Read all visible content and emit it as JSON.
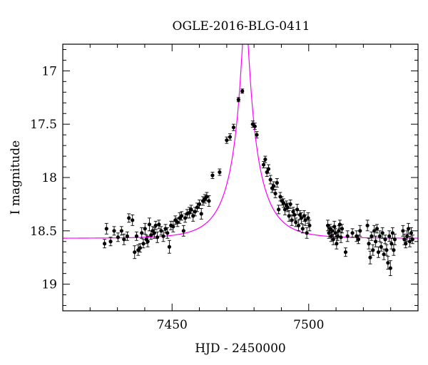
{
  "chart_data": {
    "type": "scatter",
    "title": "OGLE-2016-BLG-0411",
    "xlabel": "HJD - 2450000",
    "ylabel": "I magnitude",
    "xlim": [
      7410,
      7540
    ],
    "ylim": [
      19.25,
      16.75
    ],
    "y_inverted": true,
    "x_ticks": [
      {
        "value": 7450,
        "label": "7450"
      },
      {
        "value": 7500,
        "label": "7500"
      }
    ],
    "y_ticks": [
      {
        "value": 17,
        "label": "17"
      },
      {
        "value": 17.5,
        "label": "17.5"
      },
      {
        "value": 18,
        "label": "18"
      },
      {
        "value": 18.5,
        "label": "18.5"
      },
      {
        "value": 19,
        "label": "19"
      }
    ],
    "model": {
      "color": "#ff00ff",
      "t0": 7476.8,
      "u0": 0.1,
      "tE": 11.5,
      "baseline_mag": 18.57,
      "blend_fraction": 0.67
    },
    "points_color": "#000000",
    "series": [
      {
        "values": [
          [
            7425.3,
            18.62,
            0.04
          ],
          [
            7426.0,
            18.48,
            0.05
          ],
          [
            7427.5,
            18.6,
            0.04
          ],
          [
            7428.8,
            18.5,
            0.04
          ],
          [
            7430.2,
            18.56,
            0.04
          ],
          [
            7431.5,
            18.5,
            0.04
          ],
          [
            7432.4,
            18.58,
            0.05
          ],
          [
            7433.6,
            18.55,
            0.04
          ],
          [
            7434.2,
            18.38,
            0.04
          ],
          [
            7435.5,
            18.4,
            0.05
          ],
          [
            7436.3,
            18.7,
            0.06
          ],
          [
            7437.0,
            18.55,
            0.04
          ],
          [
            7437.6,
            18.68,
            0.05
          ],
          [
            7438.3,
            18.66,
            0.04
          ],
          [
            7438.9,
            18.52,
            0.05
          ],
          [
            7439.5,
            18.62,
            0.04
          ],
          [
            7440.1,
            18.48,
            0.05
          ],
          [
            7440.6,
            18.58,
            0.04
          ],
          [
            7441.1,
            18.6,
            0.05
          ],
          [
            7441.7,
            18.44,
            0.06
          ],
          [
            7442.3,
            18.54,
            0.04
          ],
          [
            7442.9,
            18.5,
            0.04
          ],
          [
            7443.5,
            18.52,
            0.05
          ],
          [
            7444.0,
            18.45,
            0.04
          ],
          [
            7444.6,
            18.56,
            0.05
          ],
          [
            7445.2,
            18.44,
            0.04
          ],
          [
            7446.0,
            18.5,
            0.04
          ],
          [
            7446.8,
            18.55,
            0.05
          ],
          [
            7447.6,
            18.48,
            0.04
          ],
          [
            7448.3,
            18.52,
            0.05
          ],
          [
            7449.0,
            18.65,
            0.06
          ],
          [
            7449.6,
            18.45,
            0.04
          ],
          [
            7450.4,
            18.46,
            0.05
          ],
          [
            7451.2,
            18.4,
            0.04
          ],
          [
            7452.0,
            18.42,
            0.04
          ],
          [
            7452.8,
            18.38,
            0.05
          ],
          [
            7453.5,
            18.36,
            0.04
          ],
          [
            7454.2,
            18.5,
            0.05
          ],
          [
            7454.8,
            18.38,
            0.04
          ],
          [
            7455.5,
            18.34,
            0.04
          ],
          [
            7456.3,
            18.33,
            0.05
          ],
          [
            7457.0,
            18.3,
            0.04
          ],
          [
            7457.7,
            18.36,
            0.05
          ],
          [
            7458.4,
            18.32,
            0.04
          ],
          [
            7459.2,
            18.28,
            0.04
          ],
          [
            7460.0,
            18.25,
            0.04
          ],
          [
            7460.7,
            18.34,
            0.05
          ],
          [
            7461.3,
            18.22,
            0.04
          ],
          [
            7462.0,
            18.2,
            0.04
          ],
          [
            7462.7,
            18.18,
            0.04
          ],
          [
            7463.5,
            18.22,
            0.05
          ],
          [
            7464.8,
            17.98,
            0.03
          ],
          [
            7467.4,
            17.95,
            0.03
          ],
          [
            7470.0,
            17.65,
            0.03
          ],
          [
            7471.2,
            17.62,
            0.03
          ],
          [
            7472.5,
            17.53,
            0.03
          ],
          [
            7474.3,
            17.27,
            0.02
          ],
          [
            7475.7,
            17.19,
            0.02
          ],
          [
            7479.5,
            17.5,
            0.03
          ],
          [
            7480.3,
            17.52,
            0.03
          ],
          [
            7481.0,
            17.6,
            0.03
          ],
          [
            7483.5,
            17.88,
            0.03
          ],
          [
            7484.1,
            17.83,
            0.03
          ],
          [
            7484.7,
            17.95,
            0.04
          ],
          [
            7485.3,
            17.92,
            0.04
          ],
          [
            7486.0,
            18.02,
            0.04
          ],
          [
            7486.6,
            18.1,
            0.04
          ],
          [
            7487.2,
            18.08,
            0.04
          ],
          [
            7487.8,
            18.15,
            0.04
          ],
          [
            7488.4,
            18.05,
            0.04
          ],
          [
            7489.0,
            18.3,
            0.04
          ],
          [
            7489.6,
            18.18,
            0.04
          ],
          [
            7490.2,
            18.22,
            0.04
          ],
          [
            7490.8,
            18.24,
            0.04
          ],
          [
            7491.3,
            18.3,
            0.05
          ],
          [
            7491.8,
            18.26,
            0.04
          ],
          [
            7492.3,
            18.28,
            0.04
          ],
          [
            7492.8,
            18.36,
            0.05
          ],
          [
            7493.3,
            18.25,
            0.04
          ],
          [
            7493.8,
            18.4,
            0.05
          ],
          [
            7494.3,
            18.32,
            0.04
          ],
          [
            7494.8,
            18.35,
            0.05
          ],
          [
            7495.3,
            18.42,
            0.04
          ],
          [
            7495.8,
            18.3,
            0.05
          ],
          [
            7496.3,
            18.45,
            0.05
          ],
          [
            7496.8,
            18.35,
            0.04
          ],
          [
            7497.3,
            18.38,
            0.05
          ],
          [
            7497.8,
            18.48,
            0.04
          ],
          [
            7498.3,
            18.36,
            0.05
          ],
          [
            7498.8,
            18.4,
            0.05
          ],
          [
            7499.3,
            18.52,
            0.05
          ],
          [
            7499.8,
            18.38,
            0.05
          ],
          [
            7500.3,
            18.45,
            0.05
          ],
          [
            7507.0,
            18.45,
            0.05
          ],
          [
            7507.4,
            18.52,
            0.05
          ],
          [
            7507.8,
            18.48,
            0.04
          ],
          [
            7508.2,
            18.55,
            0.05
          ],
          [
            7508.6,
            18.5,
            0.04
          ],
          [
            7509.0,
            18.58,
            0.05
          ],
          [
            7509.4,
            18.46,
            0.05
          ],
          [
            7509.8,
            18.52,
            0.04
          ],
          [
            7510.2,
            18.62,
            0.05
          ],
          [
            7510.6,
            18.55,
            0.04
          ],
          [
            7511.0,
            18.5,
            0.05
          ],
          [
            7511.4,
            18.44,
            0.04
          ],
          [
            7511.8,
            18.56,
            0.05
          ],
          [
            7512.2,
            18.48,
            0.04
          ],
          [
            7513.5,
            18.7,
            0.04
          ],
          [
            7514.2,
            18.55,
            0.05
          ],
          [
            7516.0,
            18.52,
            0.04
          ],
          [
            7517.5,
            18.55,
            0.05
          ],
          [
            7518.2,
            18.58,
            0.04
          ],
          [
            7518.8,
            18.5,
            0.05
          ],
          [
            7521.5,
            18.45,
            0.05
          ],
          [
            7522.0,
            18.62,
            0.05
          ],
          [
            7522.5,
            18.75,
            0.06
          ],
          [
            7523.0,
            18.55,
            0.04
          ],
          [
            7523.5,
            18.68,
            0.05
          ],
          [
            7524.0,
            18.5,
            0.05
          ],
          [
            7524.5,
            18.6,
            0.05
          ],
          [
            7525.0,
            18.48,
            0.04
          ],
          [
            7525.5,
            18.7,
            0.05
          ],
          [
            7526.0,
            18.55,
            0.05
          ],
          [
            7526.5,
            18.65,
            0.04
          ],
          [
            7527.0,
            18.52,
            0.05
          ],
          [
            7527.5,
            18.72,
            0.05
          ],
          [
            7528.0,
            18.58,
            0.04
          ],
          [
            7528.5,
            18.68,
            0.05
          ],
          [
            7529.0,
            18.8,
            0.06
          ],
          [
            7529.5,
            18.55,
            0.05
          ],
          [
            7529.9,
            18.85,
            0.07
          ],
          [
            7530.3,
            18.62,
            0.05
          ],
          [
            7530.7,
            18.52,
            0.05
          ],
          [
            7531.1,
            18.68,
            0.05
          ],
          [
            7531.5,
            18.58,
            0.05
          ],
          [
            7534.5,
            18.5,
            0.05
          ],
          [
            7535.0,
            18.58,
            0.05
          ],
          [
            7535.5,
            18.62,
            0.04
          ],
          [
            7536.0,
            18.55,
            0.05
          ],
          [
            7536.5,
            18.48,
            0.05
          ],
          [
            7537.0,
            18.6,
            0.05
          ],
          [
            7537.5,
            18.52,
            0.05
          ],
          [
            7538.0,
            18.58,
            0.04
          ]
        ]
      }
    ]
  }
}
